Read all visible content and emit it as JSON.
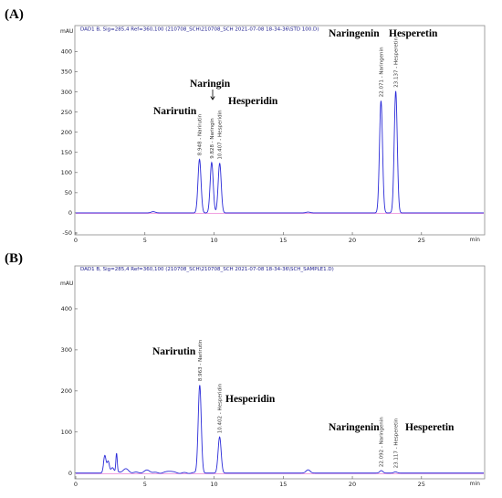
{
  "chart_data": [
    {
      "type": "line",
      "panel_label": "(A)",
      "header": "DAD1 B, Sig=285,4 Ref=360,100 (210708_SCH\\210708_SCH 2021-07-08 18-34-36\\STD 100.D)",
      "y_unit": "mAU",
      "x_unit": "min",
      "xlim": [
        0,
        29.5
      ],
      "ylim": [
        -50,
        460
      ],
      "x_ticks": [
        "0",
        "5",
        "10",
        "15",
        "20",
        "25"
      ],
      "y_ticks": [
        "-50",
        "0",
        "50",
        "100",
        "150",
        "200",
        "250",
        "300",
        "350",
        "400"
      ],
      "series": [
        {
          "peaks": [
            {
              "rt": 8.948,
              "height": 133,
              "width": 0.11
            },
            {
              "rt": 9.828,
              "height": 125,
              "width": 0.11
            },
            {
              "rt": 10.407,
              "height": 123,
              "width": 0.11
            },
            {
              "rt": 22.071,
              "height": 278,
              "width": 0.11
            },
            {
              "rt": 23.137,
              "height": 302,
              "width": 0.11
            },
            {
              "rt": 5.6,
              "height": 3,
              "width": 0.15
            },
            {
              "rt": 16.8,
              "height": 2,
              "width": 0.15
            }
          ]
        }
      ],
      "peak_labels": [
        "8.948 - Narirutin",
        "9.828 - Naringin",
        "10.407 - Hesperidin",
        "22.071 - Naringenin",
        "23.137 - Hesperetin"
      ],
      "compounds": [
        {
          "name": "Narirutin"
        },
        {
          "name": "Naringin"
        },
        {
          "name": "Hesperidin"
        },
        {
          "name": "Naringenin"
        },
        {
          "name": "Hesperetin"
        }
      ]
    },
    {
      "type": "line",
      "panel_label": "(B)",
      "header": "DAD1 B, Sig=285,4 Ref=360,100 (210708_SCH\\210708_SCH 2021-07-08 18-34-36\\SCH_SAMPLE1.D)",
      "y_unit": "mAU",
      "x_unit": "min",
      "xlim": [
        0,
        29.5
      ],
      "ylim": [
        -5,
        500
      ],
      "x_ticks": [
        "0",
        "5",
        "10",
        "15",
        "20",
        "25"
      ],
      "y_ticks": [
        "0",
        "100",
        "200",
        "300",
        "400"
      ],
      "series": [
        {
          "peaks": [
            {
              "rt": 2.1,
              "height": 40,
              "width": 0.09
            },
            {
              "rt": 2.35,
              "height": 25,
              "width": 0.08
            },
            {
              "rt": 2.65,
              "height": 12,
              "width": 0.1
            },
            {
              "rt": 2.95,
              "height": 45,
              "width": 0.05
            },
            {
              "rt": 3.6,
              "height": 8,
              "width": 0.2
            },
            {
              "rt": 5.2,
              "height": 6,
              "width": 0.2
            },
            {
              "rt": 6.8,
              "height": 5,
              "width": 0.2
            },
            {
              "rt": 8.963,
              "height": 215,
              "width": 0.11
            },
            {
              "rt": 10.402,
              "height": 88,
              "width": 0.11
            },
            {
              "rt": 16.8,
              "height": 8,
              "width": 0.15
            },
            {
              "rt": 22.092,
              "height": 6,
              "width": 0.12
            },
            {
              "rt": 23.117,
              "height": 3,
              "width": 0.12
            }
          ]
        }
      ],
      "peak_labels": [
        "8.963 - Narirutin",
        "10.402 - Hesperidin",
        "22.092 - Naringenin",
        "23.117 - Hesperetin"
      ],
      "compounds": [
        {
          "name": "Narirutin"
        },
        {
          "name": "Hesperidin"
        },
        {
          "name": "Naringenin"
        },
        {
          "name": "Hesperetin"
        }
      ]
    }
  ]
}
